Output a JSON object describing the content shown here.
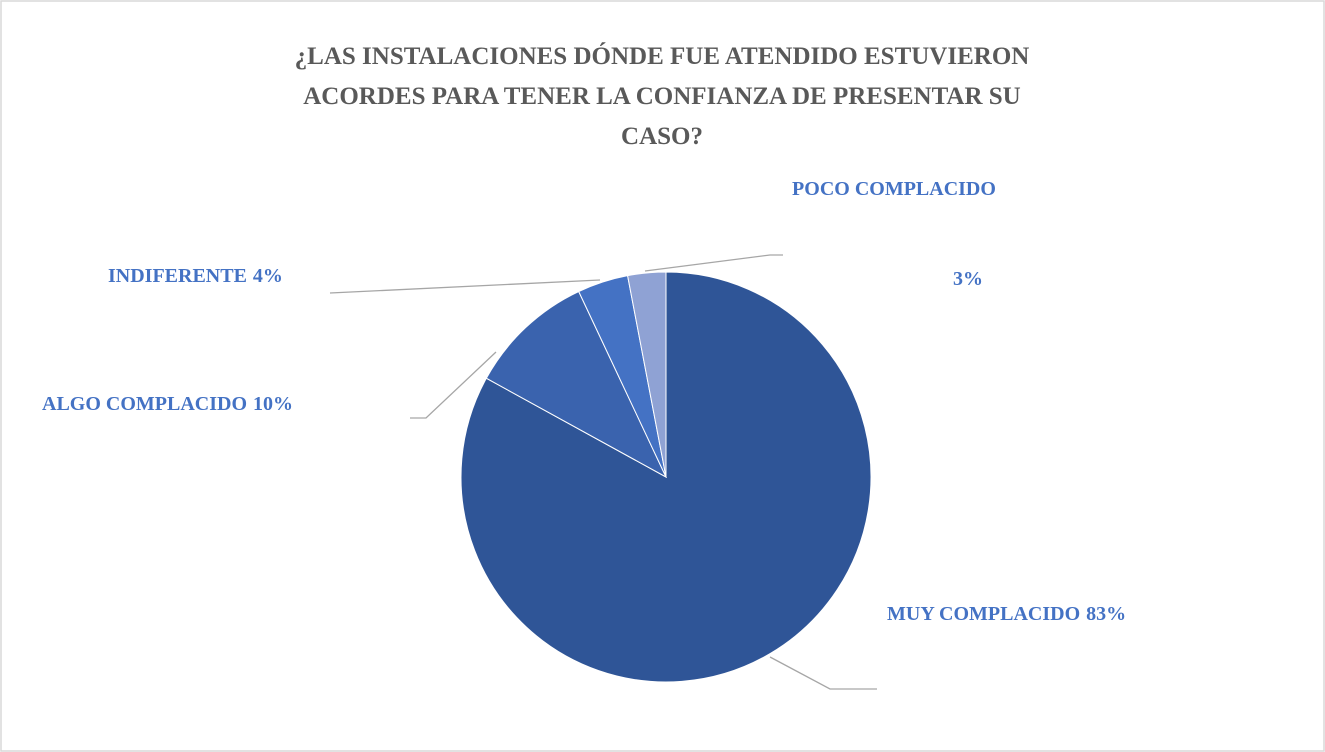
{
  "chart_data": {
    "type": "pie",
    "title": [
      "¿LAS INSTALACIONES  DÓNDE FUE ATENDIDO ESTUVIERON",
      "ACORDES PARA TENER LA CONFIANZA DE PRESENTAR SU",
      "CASO?"
    ],
    "categories": [
      "MUY COMPLACIDO",
      "ALGO COMPLACIDO",
      "INDIFERENTE",
      "POCO COMPLACIDO"
    ],
    "values": [
      83,
      10,
      4,
      3
    ],
    "value_labels": [
      "83%",
      "10%",
      "4%",
      "3%"
    ],
    "colors": [
      "#2f5597",
      "#3a63ae",
      "#4472c4",
      "#8fa2d4"
    ],
    "label_color": "#4472c4"
  }
}
